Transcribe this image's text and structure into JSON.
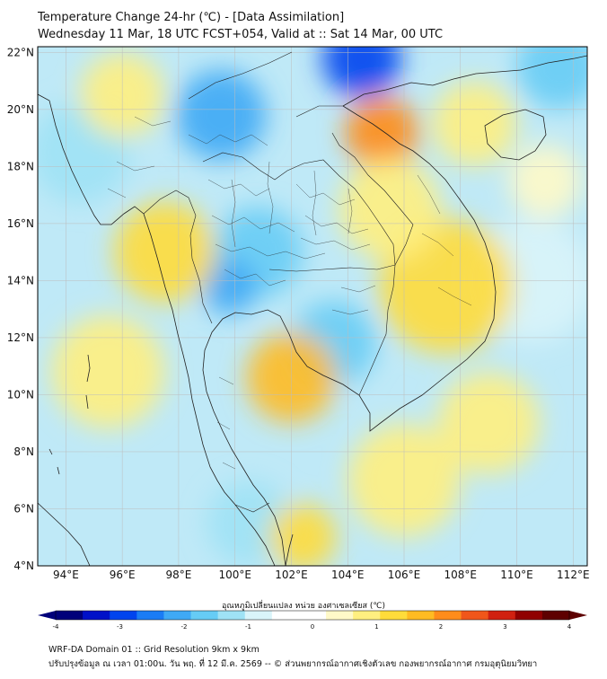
{
  "title": {
    "line1": "Temperature Change 24-hr (℃) - [Data Assimilation]",
    "line2": "Wednesday 11 Mar, 18 UTC FCST+054, Valid at :: Sat 14 Mar, 00 UTC"
  },
  "map": {
    "lon_range": [
      93,
      112.5
    ],
    "lat_range": [
      4,
      22.2
    ],
    "lat_ticks": [
      {
        "value": 4,
        "label": "4°N"
      },
      {
        "value": 6,
        "label": "6°N"
      },
      {
        "value": 8,
        "label": "8°N"
      },
      {
        "value": 10,
        "label": "10°N"
      },
      {
        "value": 12,
        "label": "12°N"
      },
      {
        "value": 14,
        "label": "14°N"
      },
      {
        "value": 16,
        "label": "16°N"
      },
      {
        "value": 18,
        "label": "18°N"
      },
      {
        "value": 20,
        "label": "20°N"
      },
      {
        "value": 22,
        "label": "22°N"
      }
    ],
    "lon_ticks": [
      {
        "value": 94,
        "label": "94°E"
      },
      {
        "value": 96,
        "label": "96°E"
      },
      {
        "value": 98,
        "label": "98°E"
      },
      {
        "value": 100,
        "label": "100°E"
      },
      {
        "value": 102,
        "label": "102°E"
      },
      {
        "value": 104,
        "label": "104°E"
      },
      {
        "value": 106,
        "label": "106°E"
      },
      {
        "value": 108,
        "label": "108°E"
      },
      {
        "value": 110,
        "label": "110°E"
      },
      {
        "value": 112,
        "label": "112°E"
      }
    ],
    "background_color": "#bfe9f7",
    "field_blobs": [
      {
        "lon": 104.5,
        "lat": 21.8,
        "r": 1.4,
        "value": -3.0
      },
      {
        "lon": 99.5,
        "lat": 19.8,
        "r": 1.6,
        "value": -2.0
      },
      {
        "lon": 100.8,
        "lat": 15.0,
        "r": 1.6,
        "value": -1.8
      },
      {
        "lon": 99.8,
        "lat": 13.8,
        "r": 1.0,
        "value": -2.0
      },
      {
        "lon": 103.5,
        "lat": 11.8,
        "r": 1.5,
        "value": -1.5
      },
      {
        "lon": 94.5,
        "lat": 18.5,
        "r": 1.8,
        "value": -1.3
      },
      {
        "lon": 111.5,
        "lat": 21.5,
        "r": 1.5,
        "value": -1.5
      },
      {
        "lon": 110.5,
        "lat": 14.0,
        "r": 2.2,
        "value": -1.0
      },
      {
        "lon": 100.5,
        "lat": 5.5,
        "r": 1.5,
        "value": -1.3
      },
      {
        "lon": 105.2,
        "lat": 19.2,
        "r": 1.3,
        "value": 2.3
      },
      {
        "lon": 107.5,
        "lat": 13.8,
        "r": 2.4,
        "value": 1.4
      },
      {
        "lon": 102.0,
        "lat": 10.6,
        "r": 1.6,
        "value": 1.5
      },
      {
        "lon": 97.5,
        "lat": 15.0,
        "r": 1.8,
        "value": 1.2
      },
      {
        "lon": 95.5,
        "lat": 10.8,
        "r": 2.0,
        "value": 1.0
      },
      {
        "lon": 102.4,
        "lat": 5.0,
        "r": 1.2,
        "value": 1.3
      },
      {
        "lon": 109.0,
        "lat": 9.0,
        "r": 1.8,
        "value": 1.0
      },
      {
        "lon": 105.5,
        "lat": 16.5,
        "r": 1.8,
        "value": 0.9
      },
      {
        "lon": 96.0,
        "lat": 20.5,
        "r": 1.5,
        "value": 0.9
      },
      {
        "lon": 108.5,
        "lat": 19.5,
        "r": 1.5,
        "value": 0.8
      },
      {
        "lon": 106.0,
        "lat": 7.0,
        "r": 2.0,
        "value": 0.7
      },
      {
        "lon": 111.0,
        "lat": 17.5,
        "r": 1.3,
        "value": 0.6
      }
    ]
  },
  "colorbar": {
    "label": "อุณหภูมิเปลี่ยนแปลง หน่วย องศาเซลเซียส (℃)",
    "min": -4,
    "max": 4,
    "ticks": [
      {
        "value": -4,
        "label": "-4"
      },
      {
        "value": -3,
        "label": "-3"
      },
      {
        "value": -2,
        "label": "-2"
      },
      {
        "value": -1,
        "label": "-1"
      },
      {
        "value": 0,
        "label": "0"
      },
      {
        "value": 1,
        "label": "1"
      },
      {
        "value": 2,
        "label": "2"
      },
      {
        "value": 3,
        "label": "3"
      },
      {
        "value": 4,
        "label": "4"
      }
    ],
    "colors": [
      "#00007a",
      "#0011c8",
      "#0044ee",
      "#1a7cf5",
      "#3fa9f5",
      "#66ccf5",
      "#9fe2f5",
      "#d9f4fa",
      "#ffffff",
      "#ffffff",
      "#fff9c8",
      "#ffef80",
      "#ffdc3a",
      "#ffbb22",
      "#ff8c1a",
      "#f0561a",
      "#d02010",
      "#900000",
      "#5e0000"
    ]
  },
  "footer": {
    "line1": "WRF-DA Domain 01 :: Grid Resolution 9km x 9km",
    "line2": "ปรับปรุงข้อมูล ณ เวลา 01:00น. วัน พฤ. ที่ 12 มี.ค. 2569 -- © ส่วนพยากรณ์อากาศเชิงตัวเลข กองพยากรณ์อากาศ กรมอุตุนิยมวิทยา"
  }
}
